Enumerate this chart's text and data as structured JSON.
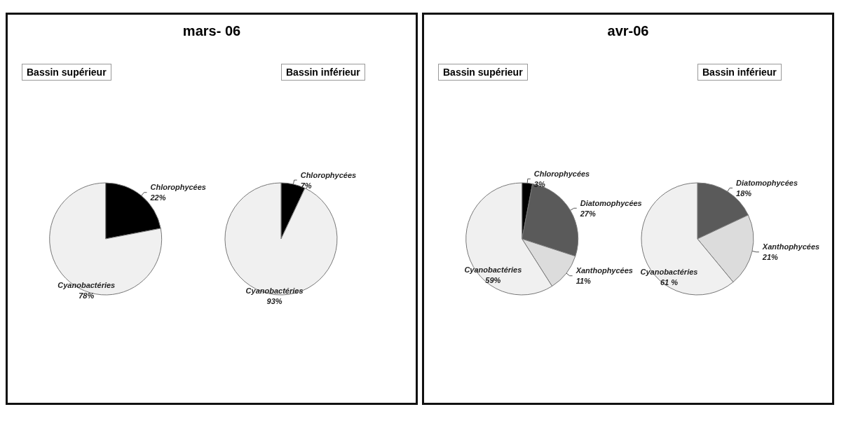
{
  "chart_data": [
    {
      "type": "pie",
      "title": "mars- 06",
      "subtitle": "Bassin supérieur",
      "categories": [
        "Chlorophycées",
        "Cyanobactéries"
      ],
      "values": [
        22,
        78
      ],
      "value_labels": [
        "22%",
        "78%"
      ],
      "colors": [
        "#000000",
        "#f0f0f0"
      ]
    },
    {
      "type": "pie",
      "subtitle": "Bassin inférieur",
      "categories": [
        "Chlorophycées",
        "Cyanobactéries"
      ],
      "values": [
        7,
        93
      ],
      "value_labels": [
        "7%",
        "93%"
      ],
      "colors": [
        "#000000",
        "#f0f0f0"
      ]
    },
    {
      "type": "pie",
      "title": "avr-06",
      "subtitle": "Bassin supérieur",
      "categories": [
        "Chlorophycées",
        "Diatomophycées",
        "Xanthophycées",
        "Cyanobactéries"
      ],
      "values": [
        3,
        27,
        11,
        59
      ],
      "value_labels": [
        "3%",
        "27%",
        "11%",
        "59%"
      ],
      "colors": [
        "#000000",
        "#5a5a5a",
        "#dcdcdc",
        "#f0f0f0"
      ]
    },
    {
      "type": "pie",
      "subtitle": "Bassin inférieur",
      "categories": [
        "Diatomophycées",
        "Xanthophycées",
        "Cyanobactéries"
      ],
      "values": [
        18,
        21,
        61
      ],
      "value_labels": [
        "18%",
        "21%",
        "61 %"
      ],
      "colors": [
        "#5a5a5a",
        "#dcdcdc",
        "#f0f0f0"
      ]
    }
  ]
}
